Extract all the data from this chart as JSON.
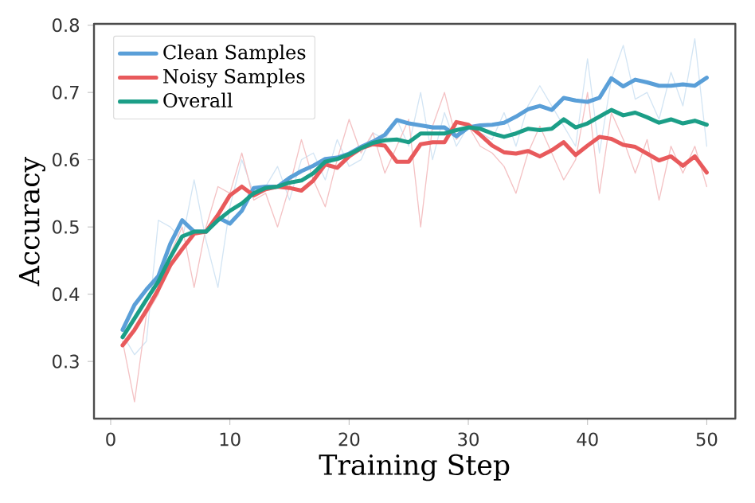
{
  "chart_data": {
    "type": "line",
    "xlabel": "Training Step",
    "ylabel": "Accuracy",
    "x": [
      1,
      2,
      3,
      4,
      5,
      6,
      7,
      8,
      9,
      10,
      11,
      12,
      13,
      14,
      15,
      16,
      17,
      18,
      19,
      20,
      21,
      22,
      23,
      24,
      25,
      26,
      27,
      28,
      29,
      30,
      31,
      32,
      33,
      34,
      35,
      36,
      37,
      38,
      39,
      40,
      41,
      42,
      43,
      44,
      45,
      46,
      47,
      48,
      49,
      50
    ],
    "xlim": [
      -1.4,
      52.4
    ],
    "ylim": [
      0.215,
      0.802
    ],
    "xticks": [
      0,
      10,
      20,
      30,
      40,
      50
    ],
    "yticks": [
      0.3,
      0.4,
      0.5,
      0.6,
      0.7,
      0.8
    ],
    "legend": "top left",
    "grid": false,
    "marker": "none",
    "line_style": "solid",
    "series": [
      {
        "color": "#d3e5f4",
        "values": [
          0.34,
          0.31,
          0.33,
          0.51,
          0.5,
          0.48,
          0.57,
          0.48,
          0.41,
          0.53,
          0.6,
          0.55,
          0.56,
          0.59,
          0.54,
          0.6,
          0.61,
          0.57,
          0.63,
          0.59,
          0.6,
          0.64,
          0.63,
          0.66,
          0.62,
          0.7,
          0.6,
          0.67,
          0.62,
          0.65,
          0.64,
          0.63,
          0.67,
          0.62,
          0.68,
          0.71,
          0.68,
          0.65,
          0.62,
          0.75,
          0.61,
          0.72,
          0.77,
          0.69,
          0.7,
          0.66,
          0.73,
          0.68,
          0.78,
          0.62
        ]
      },
      {
        "color": "#f4c2c4",
        "values": [
          0.33,
          0.24,
          0.37,
          0.4,
          0.46,
          0.5,
          0.41,
          0.5,
          0.56,
          0.55,
          0.61,
          0.54,
          0.55,
          0.5,
          0.56,
          0.63,
          0.57,
          0.53,
          0.6,
          0.66,
          0.61,
          0.64,
          0.58,
          0.62,
          0.66,
          0.5,
          0.65,
          0.7,
          0.63,
          0.65,
          0.62,
          0.61,
          0.59,
          0.55,
          0.61,
          0.65,
          0.61,
          0.57,
          0.6,
          0.7,
          0.55,
          0.67,
          0.63,
          0.58,
          0.63,
          0.54,
          0.62,
          0.58,
          0.62,
          0.56
        ]
      },
      {
        "name": "Clean Samples",
        "color": "#5a9fd8",
        "values": [
          0.347,
          0.384,
          0.407,
          0.427,
          0.475,
          0.51,
          0.493,
          0.493,
          0.514,
          0.505,
          0.524,
          0.558,
          0.56,
          0.56,
          0.573,
          0.583,
          0.591,
          0.601,
          0.603,
          0.609,
          0.619,
          0.627,
          0.637,
          0.659,
          0.654,
          0.651,
          0.648,
          0.648,
          0.635,
          0.648,
          0.651,
          0.652,
          0.655,
          0.664,
          0.675,
          0.68,
          0.674,
          0.692,
          0.688,
          0.686,
          0.692,
          0.721,
          0.709,
          0.719,
          0.715,
          0.71,
          0.71,
          0.712,
          0.71,
          0.722
        ]
      },
      {
        "name": "Noisy Samples",
        "color": "#e85a5c",
        "values": [
          0.324,
          0.347,
          0.376,
          0.407,
          0.443,
          0.467,
          0.49,
          0.493,
          0.518,
          0.547,
          0.56,
          0.547,
          0.556,
          0.56,
          0.558,
          0.554,
          0.569,
          0.593,
          0.588,
          0.605,
          0.617,
          0.623,
          0.621,
          0.597,
          0.597,
          0.623,
          0.626,
          0.626,
          0.656,
          0.652,
          0.637,
          0.621,
          0.611,
          0.609,
          0.613,
          0.605,
          0.614,
          0.626,
          0.607,
          0.621,
          0.634,
          0.631,
          0.622,
          0.619,
          0.609,
          0.599,
          0.605,
          0.591,
          0.605,
          0.581
        ]
      },
      {
        "name": "Overall",
        "color": "#1b9e87",
        "values": [
          0.336,
          0.364,
          0.392,
          0.419,
          0.455,
          0.486,
          0.493,
          0.493,
          0.51,
          0.524,
          0.535,
          0.55,
          0.558,
          0.56,
          0.566,
          0.569,
          0.58,
          0.597,
          0.601,
          0.608,
          0.617,
          0.625,
          0.629,
          0.63,
          0.626,
          0.639,
          0.639,
          0.639,
          0.644,
          0.648,
          0.646,
          0.639,
          0.634,
          0.639,
          0.646,
          0.644,
          0.646,
          0.66,
          0.648,
          0.654,
          0.664,
          0.674,
          0.666,
          0.67,
          0.663,
          0.655,
          0.66,
          0.654,
          0.658,
          0.652
        ]
      }
    ]
  }
}
